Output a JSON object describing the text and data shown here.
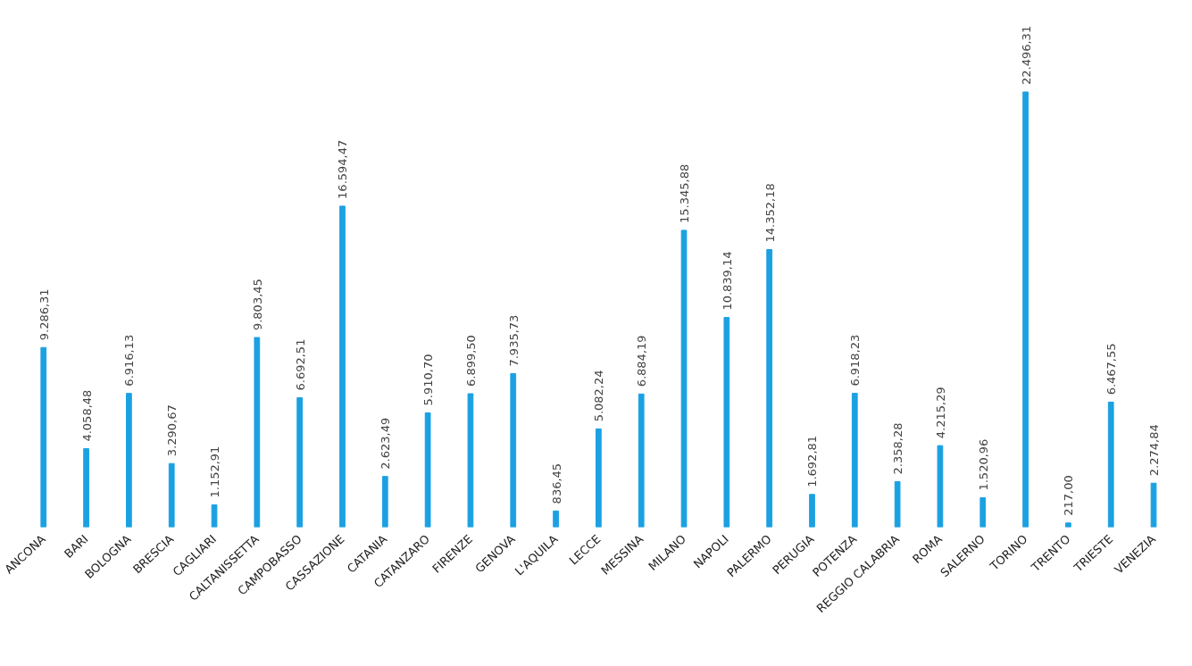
{
  "chart_data": {
    "type": "bar",
    "categories": [
      "ANCONA",
      "BARI",
      "BOLOGNA",
      "BRESCIA",
      "CAGLIARI",
      "CALTANISSETTA",
      "CAMPOBASSO",
      "CASSAZIONE",
      "CATANIA",
      "CATANZARO",
      "FIRENZE",
      "GENOVA",
      "L'AQUILA",
      "LECCE",
      "MESSINA",
      "MILANO",
      "NAPOLI",
      "PALERMO",
      "PERUGIA",
      "POTENZA",
      "REGGIO CALABRIA",
      "ROMA",
      "SALERNO",
      "TORINO",
      "TRENTO",
      "TRIESTE",
      "VENEZIA"
    ],
    "values": [
      9286.31,
      4058.48,
      6916.13,
      3290.67,
      1152.91,
      9803.45,
      6692.51,
      16594.47,
      2623.49,
      5910.7,
      6899.5,
      7935.73,
      836.45,
      5082.24,
      6884.19,
      15345.88,
      10839.14,
      14352.18,
      1692.81,
      6918.23,
      2358.28,
      4215.29,
      1520.96,
      22496.31,
      217.0,
      6467.55,
      2274.84
    ],
    "value_labels": [
      "9.286,31",
      "4.058,48",
      "6.916,13",
      "3.290,67",
      "1.152,91",
      "9.803,45",
      "6.692,51",
      "16.594,47",
      "2.623,49",
      "5.910,70",
      "6.899,50",
      "7.935,73",
      "836,45",
      "5.082,24",
      "6.884,19",
      "15.345,88",
      "10.839,14",
      "14.352,18",
      "1.692,81",
      "6.918,23",
      "2.358,28",
      "4.215,29",
      "1.520,96",
      "22.496,31",
      "217,00",
      "6.467,55",
      "2.274,84"
    ],
    "color": "#1ba1e2",
    "grid": false
  }
}
